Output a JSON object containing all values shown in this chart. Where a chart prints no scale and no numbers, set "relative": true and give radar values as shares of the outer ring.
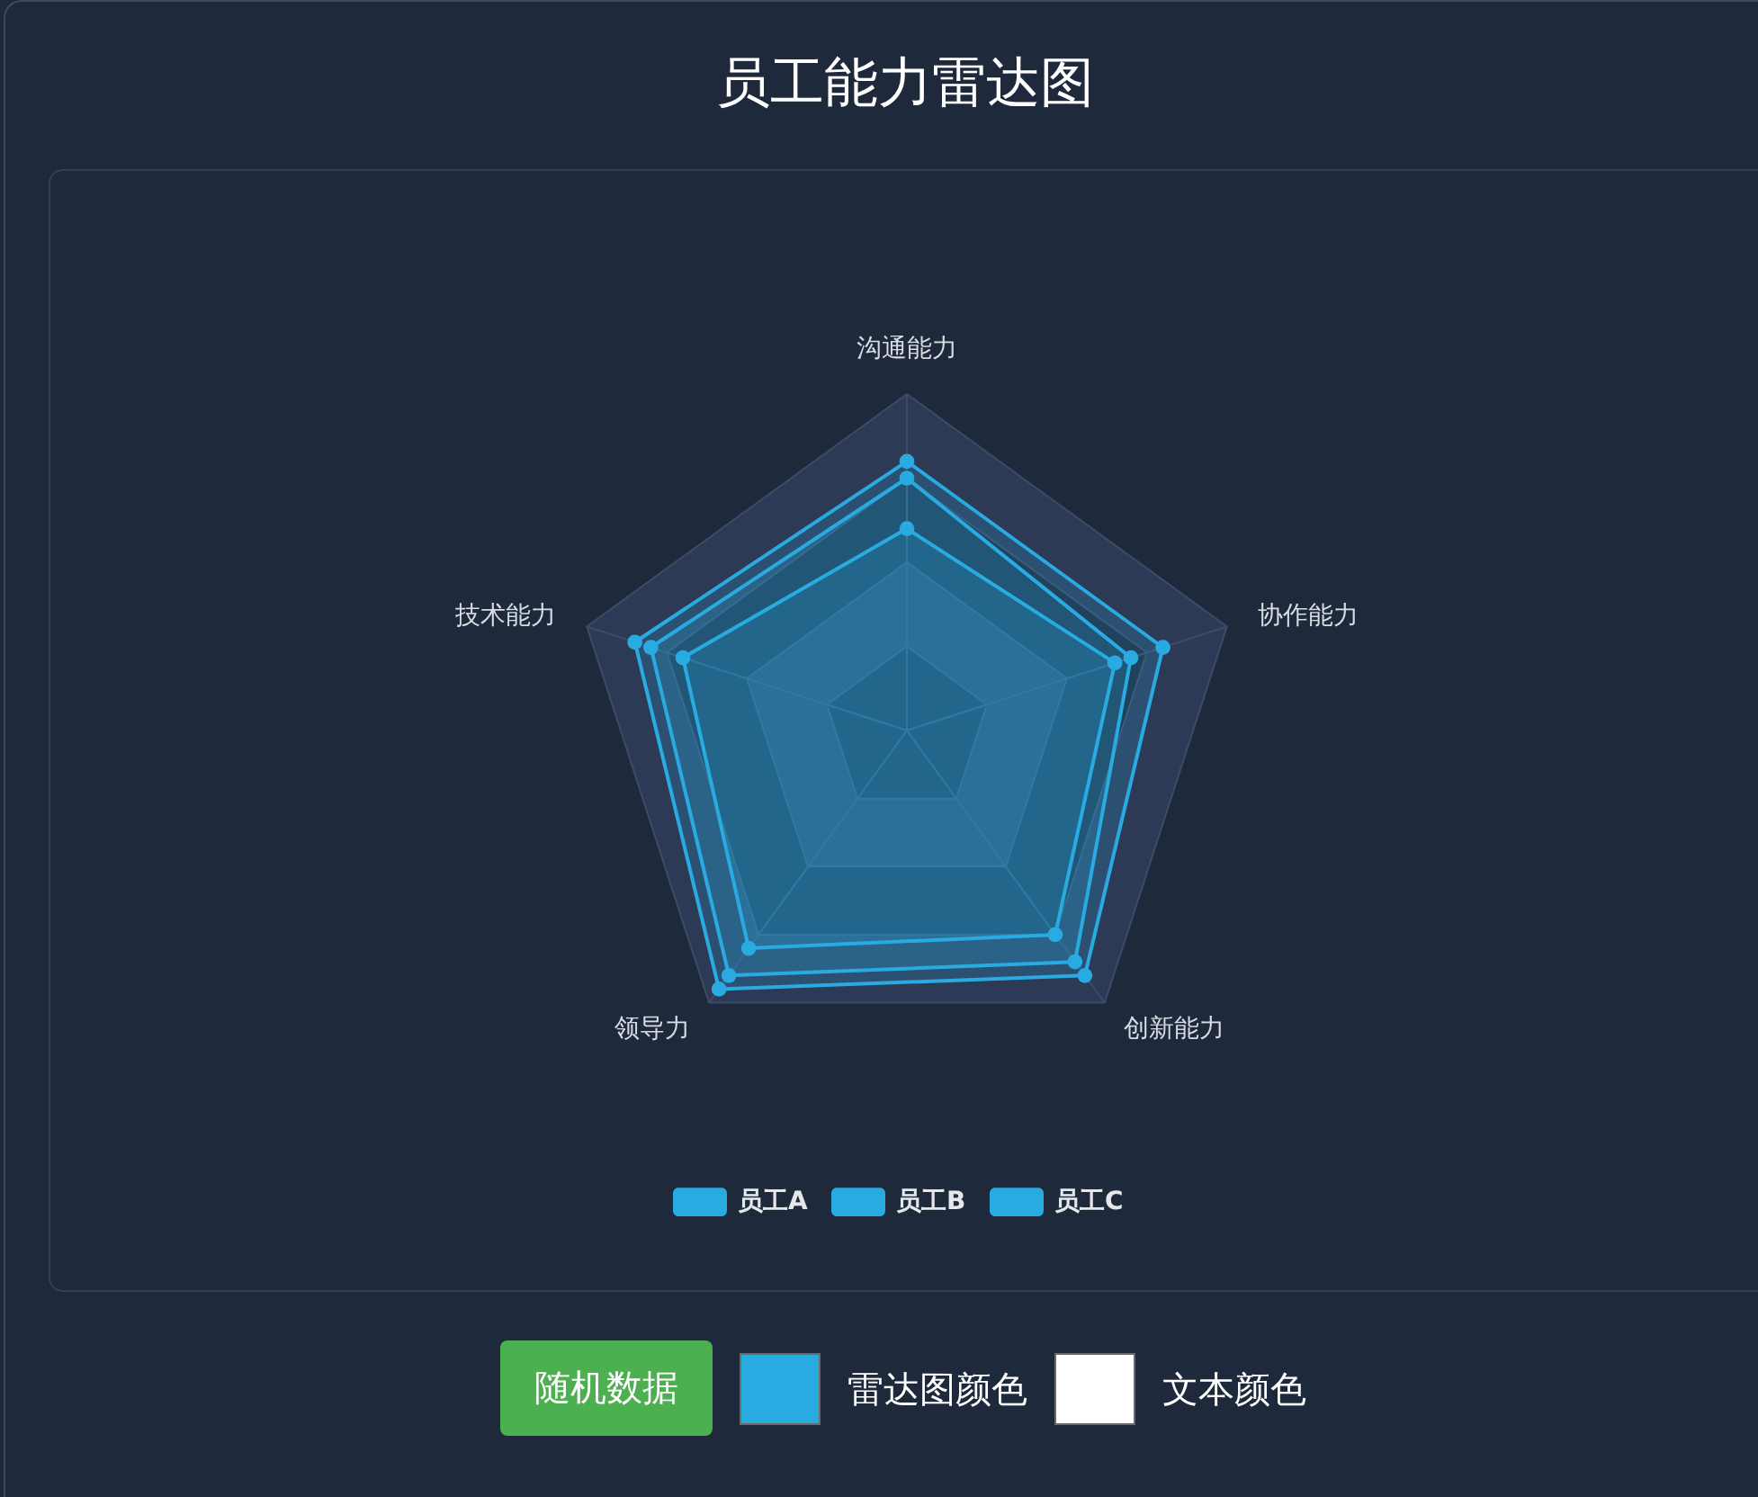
{
  "chart_data": {
    "type": "radar",
    "title": "员工能力雷达图",
    "categories": [
      "沟通能力",
      "协作能力",
      "创新能力",
      "领导力",
      "技术能力"
    ],
    "relative": true,
    "series": [
      {
        "name": "员工A",
        "color": "#29abe2",
        "values": [
          0.8,
          0.8,
          0.9,
          0.95,
          0.85
        ]
      },
      {
        "name": "员工B",
        "color": "#29abe2",
        "values": [
          0.75,
          0.7,
          0.85,
          0.9,
          0.8
        ]
      },
      {
        "name": "员工C",
        "color": "#29abe2",
        "values": [
          0.6,
          0.65,
          0.75,
          0.8,
          0.7
        ]
      }
    ],
    "legend": "bottom",
    "grid": true,
    "marker": "circle",
    "line_style": "solid",
    "annotations": [
      "随机数据",
      "雷达图颜色",
      "文本颜色"
    ]
  }
}
